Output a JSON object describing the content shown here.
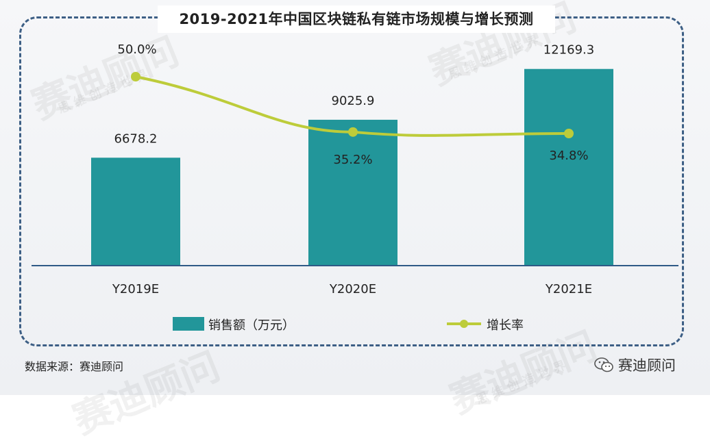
{
  "title": "2019-2021年中国区块链私有链市场规模与增长预测",
  "source": "数据来源：赛迪顾问",
  "brand": "赛迪顾问",
  "watermark": "赛迪顾问",
  "watermark_sub": "思 维 创 造 世 界",
  "colors": {
    "bar": "#22969a",
    "line": "#bdcc3a",
    "frame": "#3d5f85",
    "axis": "#2e5a86"
  },
  "chart_data": {
    "type": "bar+line",
    "categories": [
      "Y2019E",
      "Y2020E",
      "Y2021E"
    ],
    "series": [
      {
        "name": "销售额（万元）",
        "type": "bar",
        "values": [
          6678.2,
          9025.9,
          12169.3
        ],
        "labels": [
          "6678.2",
          "9025.9",
          "12169.3"
        ]
      },
      {
        "name": "增长率",
        "type": "line",
        "values": [
          50.0,
          35.2,
          34.8
        ],
        "labels": [
          "50.0%",
          "35.2%",
          "34.8%"
        ]
      }
    ],
    "legend": "bottom",
    "grid": false
  }
}
